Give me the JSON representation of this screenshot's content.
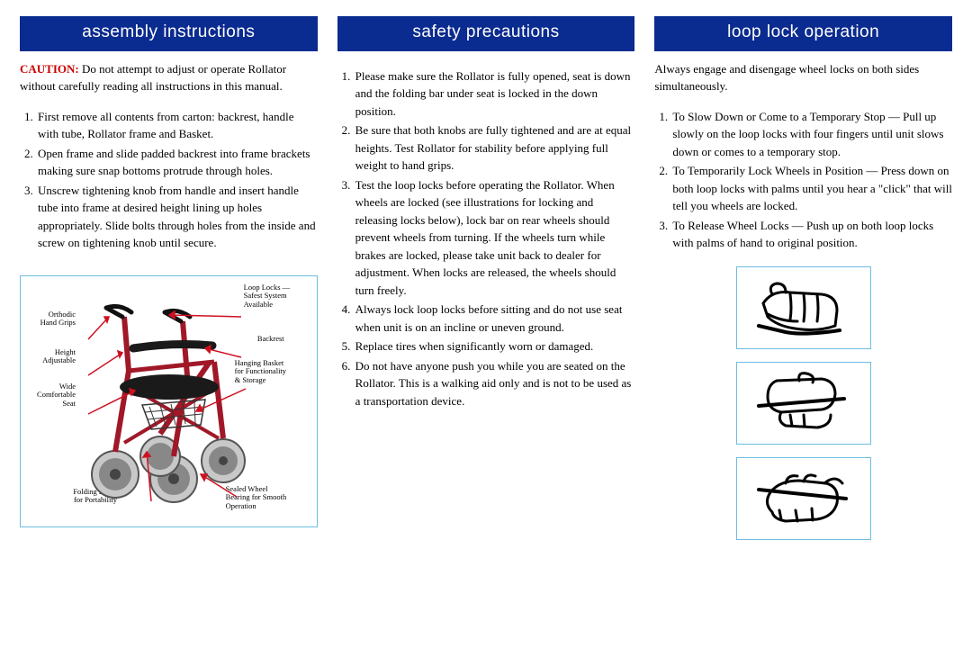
{
  "colors": {
    "header_bg": "#0a2b8f",
    "header_text": "#ffffff",
    "caution": "#cc0000",
    "box_border": "#6bbde0",
    "rollator_frame": "#a01828",
    "rollator_seat": "#1a1a1a",
    "rollator_wheel": "#808080",
    "rollator_tire": "#c8c8c8",
    "arrow": "#d01020"
  },
  "col1": {
    "header": "assembly instructions",
    "caution_label": "CAUTION:",
    "caution_text": " Do not attempt to adjust or operate Rollator without carefully reading all instructions in this manual.",
    "steps": [
      "First remove all contents from carton:  backrest, handle with tube, Rollator frame and Basket.",
      "Open frame and slide padded backrest into frame brackets making sure snap bottoms protrude through holes.",
      "Unscrew tightening knob from handle and insert handle tube into frame at desired height lining up holes appropriately.  Slide bolts through holes from the inside and screw on tightening knob until secure."
    ],
    "diagram_labels": {
      "orthodic": "Orthodic\nHand Grips",
      "height": "Height\nAdjustable",
      "seat": "Wide\nComfortable\nSeat",
      "hinge": "Folding Hinge\nfor Portability",
      "looplocks": "Loop Locks —\nSafest System\nAvailable",
      "backrest": "Backrest",
      "basket": "Hanging Basket\nfor Functionality\n& Storage",
      "bearing": "Sealed Wheel\nBearing for Smooth\nOperation"
    }
  },
  "col2": {
    "header": "safety precautions",
    "steps": [
      "Please make sure the Rollator is fully opened, seat is down and the folding bar under seat is locked in the down position.",
      "Be sure that both knobs are fully tightened and are at equal heights.  Test Rollator for stability before applying full weight to hand grips.",
      "Test the loop locks before operating the Rollator.  When wheels are locked (see illustrations for locking and releasing locks below), lock bar on rear wheels should prevent wheels from turning.  If the wheels turn while brakes are locked, please take unit back to dealer for adjustment.  When locks are released, the wheels should turn freely.",
      "Always lock loop locks before sitting and do not use seat when unit is on an incline or uneven ground.",
      "Replace tires when significantly worn or damaged.",
      "Do not have anyone push you while you are seated on the Rollator.  This is a walking aid only and is not to be used as a transportation device."
    ]
  },
  "col3": {
    "header": "loop lock operation",
    "intro": "Always engage and disengage wheel locks on both sides simultaneously.",
    "steps": [
      "To Slow Down or Come to a Temporary Stop — Pull up slowly on the loop locks with four fingers until unit slows down or comes to a temporary stop.",
      "To Temporarily Lock Wheels in Position — Press down on both loop  locks with palms until you hear a \"click\" that will tell you wheels are locked.",
      "To Release Wheel Locks — Push up on both loop locks with palms of hand to original position."
    ]
  }
}
